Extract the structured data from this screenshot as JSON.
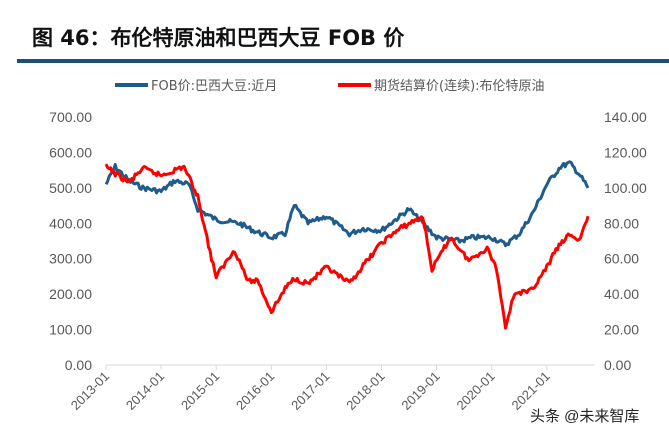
{
  "chart_data": {
    "type": "line",
    "title": "图 46：布伦特原油和巴西大豆 FOB 价",
    "x_ticks": [
      "2013-01",
      "2014-01",
      "2015-01",
      "2016-01",
      "2017-01",
      "2018-01",
      "2019-01",
      "2020-01",
      "2021-01"
    ],
    "y_left": {
      "lim": [
        0,
        700
      ],
      "ticks": [
        "0.00",
        "100.00",
        "200.00",
        "300.00",
        "400.00",
        "500.00",
        "600.00",
        "700.00"
      ]
    },
    "y_right": {
      "lim": [
        0,
        140
      ],
      "ticks": [
        "0.00",
        "20.00",
        "40.00",
        "60.00",
        "80.00",
        "100.00",
        "120.00",
        "140.00"
      ]
    },
    "legend_position": "top",
    "series": [
      {
        "name": "FOB价:巴西大豆:近月",
        "axis": "left",
        "color": "#1f5c8b",
        "x": [
          "2013-01",
          "2013-03",
          "2013-06",
          "2013-09",
          "2014-01",
          "2014-04",
          "2014-07",
          "2014-09",
          "2015-01",
          "2015-06",
          "2015-09",
          "2016-01",
          "2016-04",
          "2016-06",
          "2016-09",
          "2017-01",
          "2017-06",
          "2017-09",
          "2018-01",
          "2018-04",
          "2018-07",
          "2018-10",
          "2019-01",
          "2019-06",
          "2019-09",
          "2020-01",
          "2020-04",
          "2020-07",
          "2020-10",
          "2021-01",
          "2021-04",
          "2021-06",
          "2021-08",
          "2021-10"
        ],
        "y": [
          510,
          560,
          520,
          500,
          490,
          520,
          510,
          440,
          410,
          400,
          380,
          360,
          370,
          450,
          400,
          420,
          370,
          385,
          380,
          410,
          440,
          400,
          360,
          350,
          360,
          360,
          340,
          370,
          430,
          510,
          560,
          570,
          540,
          500
        ]
      },
      {
        "name": "期货结算价(连续):布伦特原油",
        "axis": "right",
        "color": "#ff0000",
        "x": [
          "2013-01",
          "2013-03",
          "2013-06",
          "2013-09",
          "2014-01",
          "2014-06",
          "2014-09",
          "2014-12",
          "2015-01",
          "2015-05",
          "2015-08",
          "2015-10",
          "2016-01",
          "2016-04",
          "2016-06",
          "2016-09",
          "2017-01",
          "2017-06",
          "2017-09",
          "2018-01",
          "2018-05",
          "2018-10",
          "2018-12",
          "2019-04",
          "2019-08",
          "2019-12",
          "2020-02",
          "2020-04",
          "2020-06",
          "2020-09",
          "2020-11",
          "2021-01",
          "2021-03",
          "2021-06",
          "2021-08",
          "2021-10"
        ],
        "y": [
          112,
          108,
          103,
          111,
          107,
          112,
          95,
          60,
          50,
          65,
          47,
          48,
          30,
          43,
          49,
          46,
          55,
          46,
          56,
          69,
          77,
          84,
          54,
          72,
          59,
          66,
          55,
          22,
          41,
          41,
          47,
          55,
          65,
          74,
          70,
          84
        ]
      }
    ]
  },
  "watermark": "头条 @未来智库"
}
